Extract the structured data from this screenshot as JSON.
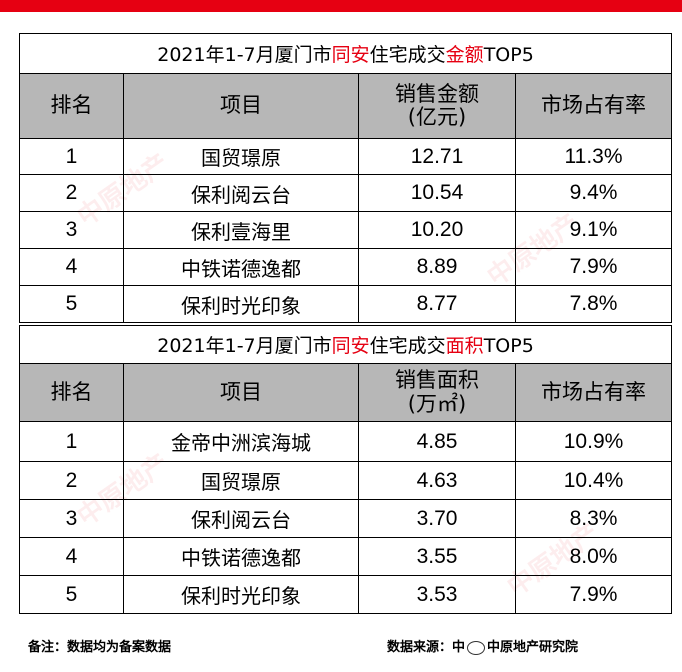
{
  "tables": [
    {
      "title_prefix": "2021年1-7月厦门市",
      "title_highlight1": "同安",
      "title_mid": "住宅成交",
      "title_highlight2": "金额",
      "title_suffix": "TOP5",
      "headers": {
        "rank": "排名",
        "project": "项目",
        "value_line1": "销售金额",
        "value_line2": "(亿元)",
        "share": "市场占有率"
      },
      "rows": [
        {
          "rank": "1",
          "project": "国贸璟原",
          "value": "12.71",
          "share": "11.3%"
        },
        {
          "rank": "2",
          "project": "保利阅云台",
          "value": "10.54",
          "share": "9.4%"
        },
        {
          "rank": "3",
          "project": "保利壹海里",
          "value": "10.20",
          "share": "9.1%"
        },
        {
          "rank": "4",
          "project": "中铁诺德逸都",
          "value": "8.89",
          "share": "7.9%"
        },
        {
          "rank": "5",
          "project": "保利时光印象",
          "value": "8.77",
          "share": "7.8%"
        }
      ]
    },
    {
      "title_prefix": "2021年1-7月厦门市",
      "title_highlight1": "同安",
      "title_mid": "住宅成交",
      "title_highlight2": "面积",
      "title_suffix": "TOP5",
      "headers": {
        "rank": "排名",
        "project": "项目",
        "value_line1": "销售面积",
        "value_line2": "(万㎡)",
        "share": "市场占有率"
      },
      "rows": [
        {
          "rank": "1",
          "project": "金帝中洲滨海城",
          "value": "4.85",
          "share": "10.9%"
        },
        {
          "rank": "2",
          "project": "国贸璟原",
          "value": "4.63",
          "share": "10.4%"
        },
        {
          "rank": "3",
          "project": "保利阅云台",
          "value": "3.70",
          "share": "8.3%"
        },
        {
          "rank": "4",
          "project": "中铁诺德逸都",
          "value": "3.55",
          "share": "8.0%"
        },
        {
          "rank": "5",
          "project": "保利时光印象",
          "value": "3.53",
          "share": "7.9%"
        }
      ]
    }
  ],
  "footer": {
    "note": "备注：数据均为备案数据",
    "source_prefix": "数据来源：中",
    "source_suffix": "中原地产研究院"
  },
  "watermark": "中原地产",
  "colors": {
    "accent": "#e60012",
    "header_bg": "#b7b7b7"
  }
}
